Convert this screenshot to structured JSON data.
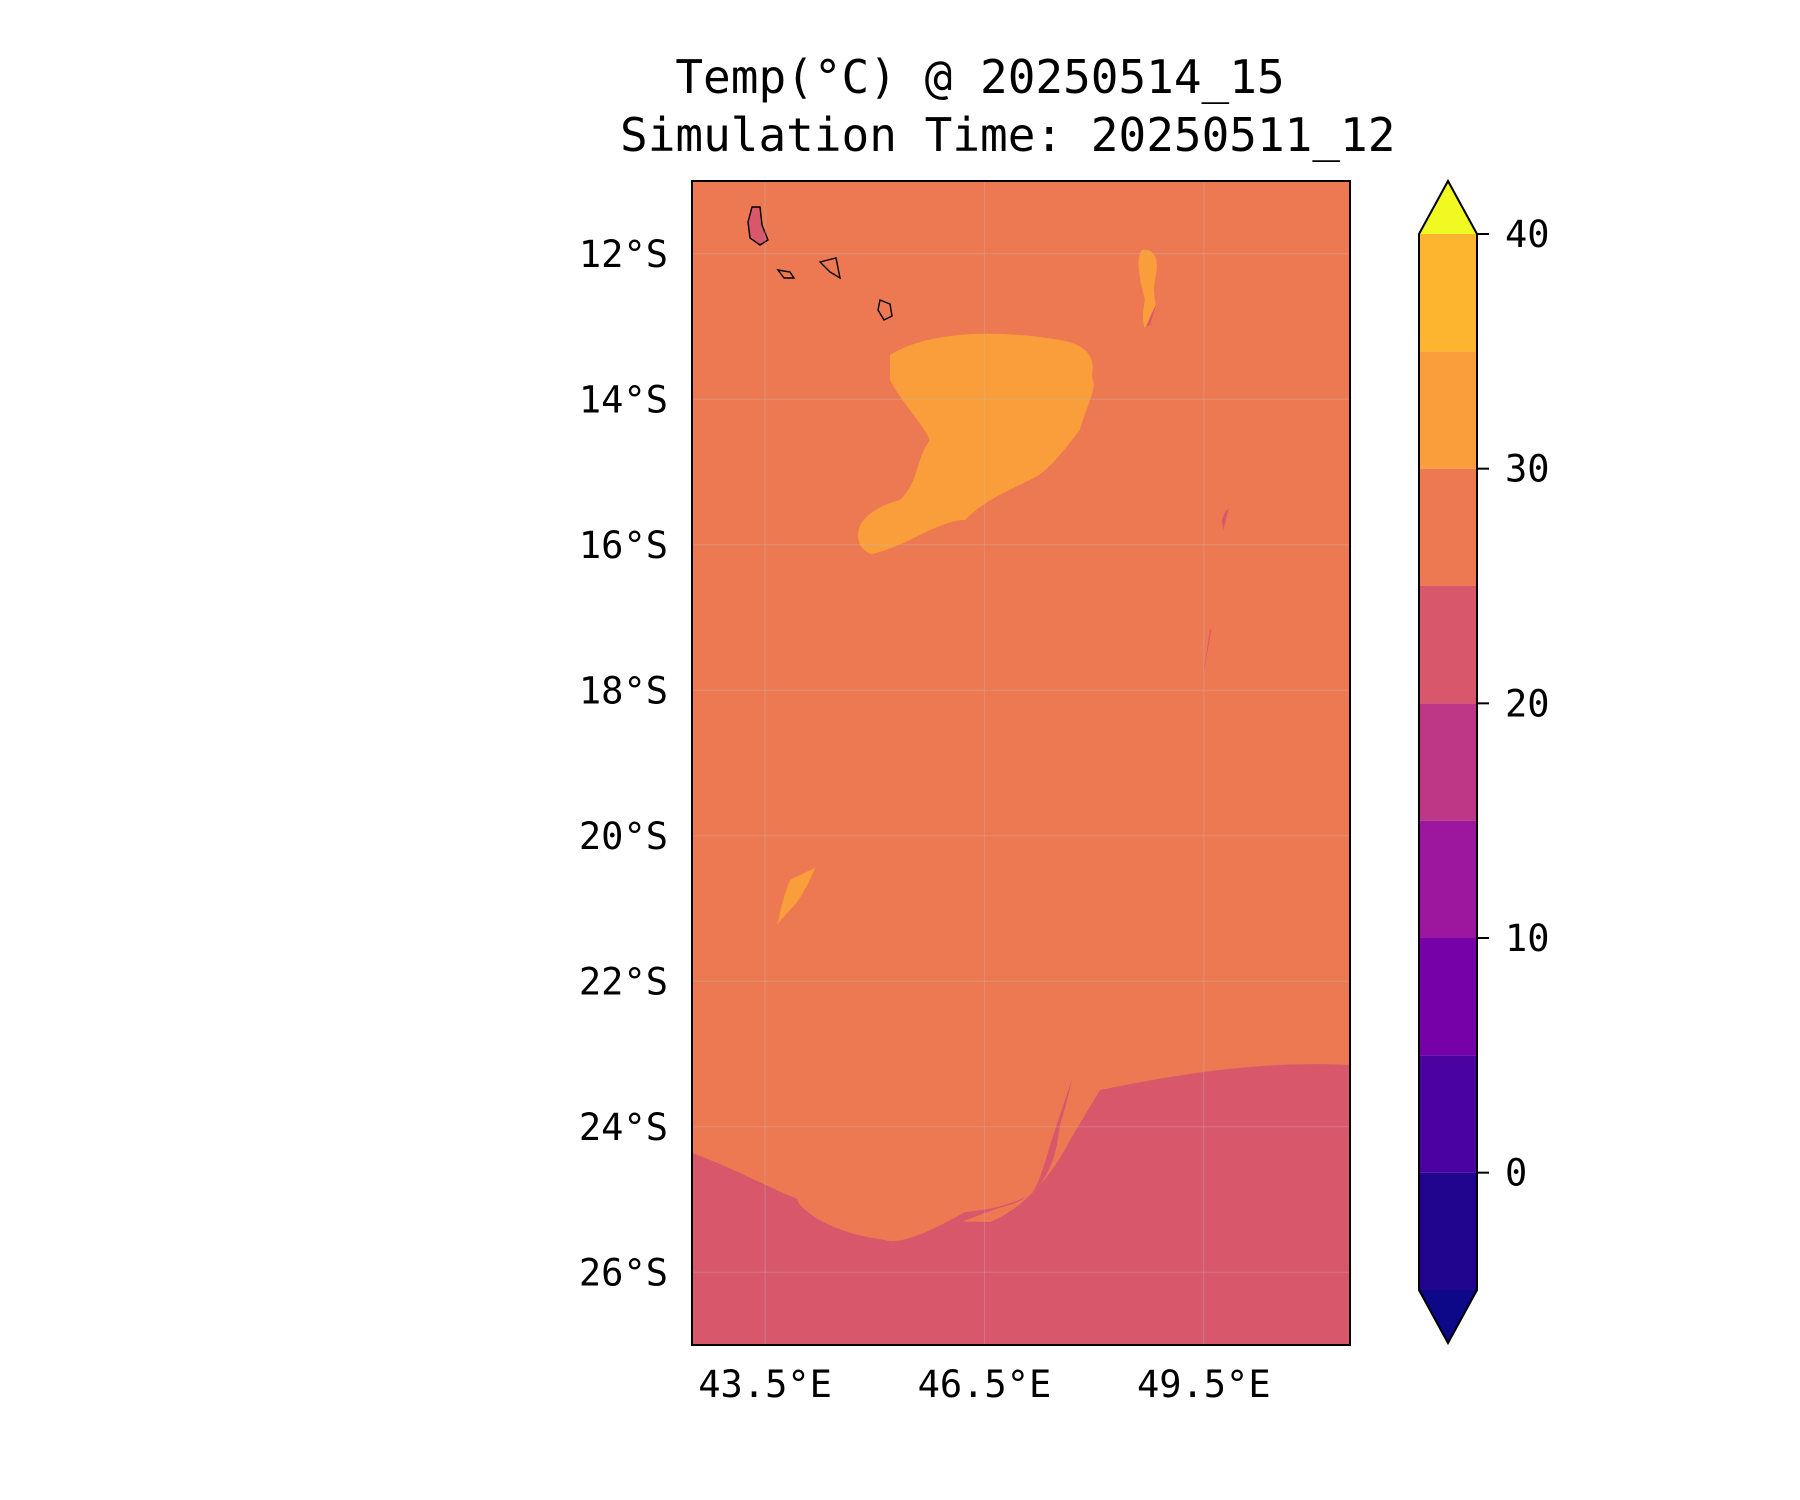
{
  "title": {
    "line1": "Temp(°C) @ 20250514_15",
    "line2": "Simulation Time: 20250511_12"
  },
  "map": {
    "variable": "Temp(°C)",
    "lat_range": [
      -27.0,
      -11.0
    ],
    "lon_range": [
      42.5,
      51.5
    ],
    "lat_ticks": [
      {
        "value": -12,
        "label": "12°S"
      },
      {
        "value": -14,
        "label": "14°S"
      },
      {
        "value": -16,
        "label": "16°S"
      },
      {
        "value": -18,
        "label": "18°S"
      },
      {
        "value": -20,
        "label": "20°S"
      },
      {
        "value": -22,
        "label": "22°S"
      },
      {
        "value": -24,
        "label": "24°S"
      },
      {
        "value": -26,
        "label": "26°S"
      }
    ],
    "lon_ticks": [
      {
        "value": 43.5,
        "label": "43.5°E"
      },
      {
        "value": 46.5,
        "label": "46.5°E"
      },
      {
        "value": 49.5,
        "label": "49.5°E"
      }
    ],
    "grid": true
  },
  "colorbar": {
    "extend": "both",
    "levels": [
      -5,
      0,
      5,
      10,
      15,
      20,
      25,
      30,
      35,
      40
    ],
    "colors": [
      "#21058f",
      "#4a02a0",
      "#7701a8",
      "#9c179e",
      "#bd3786",
      "#d8576b",
      "#ed7953",
      "#fa9e3b",
      "#fdb42f",
      "#f2e424"
    ],
    "under_color": "#0d0887",
    "over_color": "#f0f921",
    "ticks": [
      {
        "value": 0,
        "label": "0"
      },
      {
        "value": 10,
        "label": "10"
      },
      {
        "value": 20,
        "label": "20"
      },
      {
        "value": 30,
        "label": "30"
      },
      {
        "value": 40,
        "label": "40"
      }
    ]
  }
}
